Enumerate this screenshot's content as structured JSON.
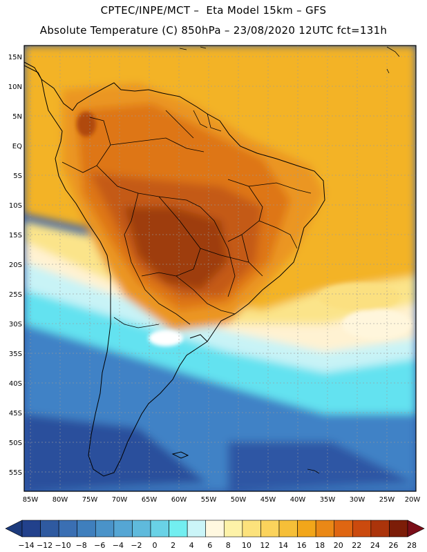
{
  "header": {
    "line1": "CPTEC/INPE/MCT –  Eta Model 15km – GFS",
    "line2": "Absolute Temperature (C) 850hPa – 23/08/2020 12UTC fct=131h"
  },
  "lat_labels": [
    "15N",
    "10N",
    "5N",
    "EQ",
    "5S",
    "10S",
    "15S",
    "20S",
    "25S",
    "30S",
    "35S",
    "40S",
    "45S",
    "50S",
    "55S"
  ],
  "lon_labels": [
    "85W",
    "80W",
    "75W",
    "70W",
    "65W",
    "60W",
    "55W",
    "50W",
    "45W",
    "40W",
    "35W",
    "30W",
    "25W",
    "20W"
  ],
  "colorbar": {
    "labels": [
      "-14",
      "-12",
      "-10",
      "-8",
      "-6",
      "-4",
      "-2",
      "0",
      "2",
      "4",
      "6",
      "8",
      "10",
      "12",
      "14",
      "16",
      "18",
      "20",
      "22",
      "24",
      "26",
      "28"
    ],
    "colors": [
      "#22418c",
      "#2f5aa0",
      "#3a6fb3",
      "#3f7fbd",
      "#4a93c9",
      "#55a6d4",
      "#5fbadc",
      "#69d2e6",
      "#72eef0",
      "#cbf5f8",
      "#fff8e0",
      "#fdf2a8",
      "#fce27c",
      "#fbd35c",
      "#f6bf38",
      "#f2a61a",
      "#ea8816",
      "#df6612",
      "#cb4a0e",
      "#ab340b",
      "#7c1d08"
    ],
    "low_color": "#1c3a7c",
    "high_color": "#7a0e18"
  },
  "palette": {
    "dark_blue": "#2a52a0",
    "mid_blue": "#3d7fc4",
    "light_blue": "#5fb6e2",
    "cyan": "#6ce9f2",
    "pale_cyan": "#cbf4f6",
    "cream": "#fff4d4",
    "yellow": "#fce98a",
    "gold": "#f3b62a",
    "orange": "#eda22a",
    "dark_orange": "#e07818",
    "rust": "#c05412",
    "brown": "#9a3a10"
  }
}
